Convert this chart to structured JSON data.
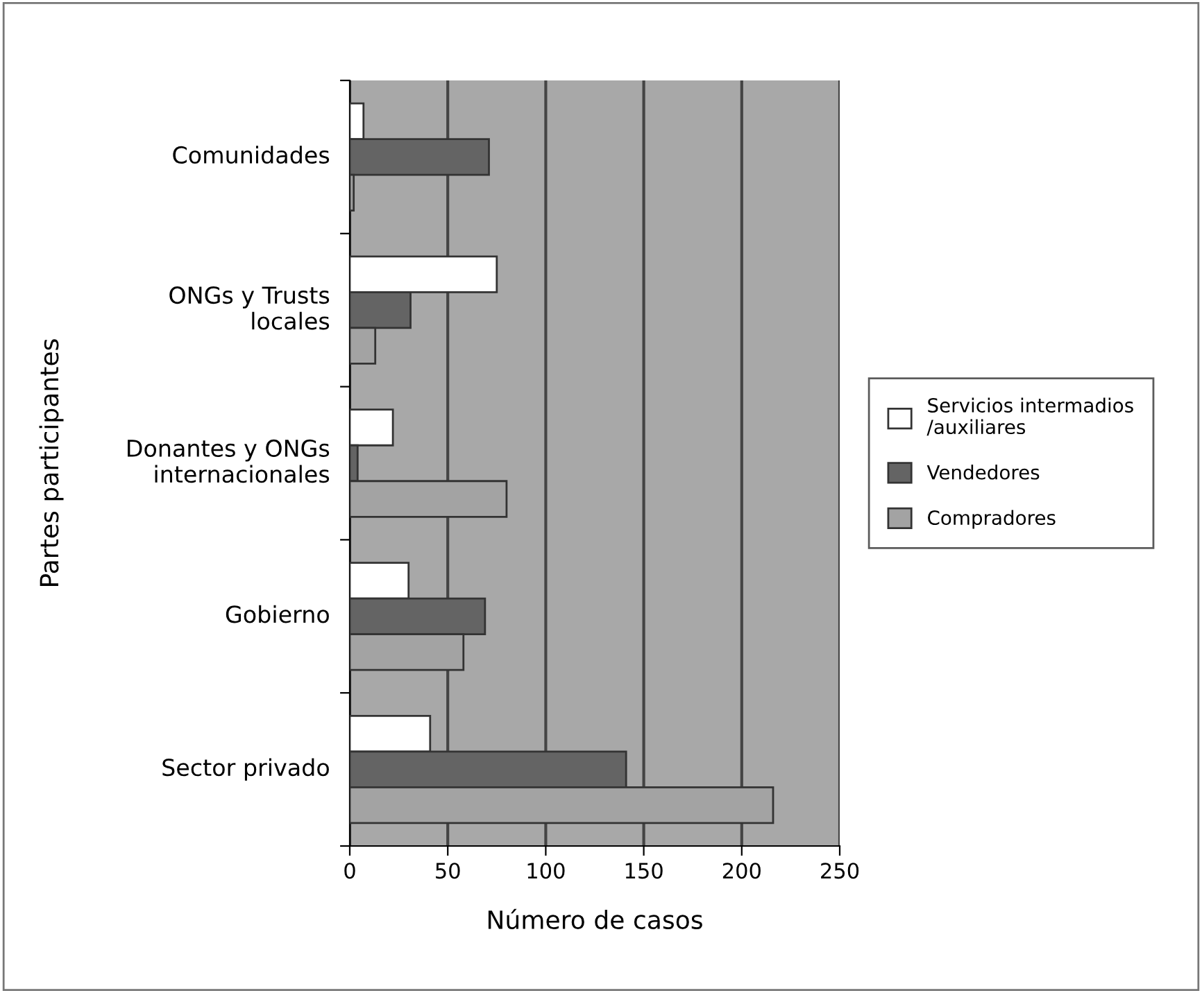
{
  "chart_data": {
    "type": "bar",
    "orientation": "horizontal",
    "xlabel": "Número de casos",
    "ylabel": "Partes participantes",
    "categories": [
      "Comunidades",
      "ONGs y Trusts\nlocales",
      "Donantes y ONGs\ninternacionales",
      "Gobierno",
      "Sector privado"
    ],
    "series": [
      {
        "name": "Servicios intermadios\n/auxiliares",
        "color": "#ffffff",
        "values": [
          7,
          75,
          22,
          30,
          41
        ]
      },
      {
        "name": "Vendedores",
        "color": "#646464",
        "values": [
          71,
          31,
          4,
          69,
          141
        ]
      },
      {
        "name": "Compradores",
        "color": "#a3a3a3",
        "values": [
          2,
          13,
          80,
          58,
          216
        ]
      }
    ],
    "xlim": [
      0,
      250
    ],
    "xticks": [
      0,
      50,
      100,
      150,
      200,
      250
    ],
    "grid": "x",
    "legend": "right"
  }
}
